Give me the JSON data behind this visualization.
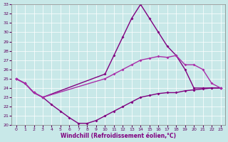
{
  "xlabel": "Windchill (Refroidissement éolien,°C)",
  "background_color": "#c8e8e8",
  "line_color": "#800080",
  "xlim": [
    -0.5,
    23.5
  ],
  "ylim": [
    20,
    33
  ],
  "yticks": [
    20,
    21,
    22,
    23,
    24,
    25,
    26,
    27,
    28,
    29,
    30,
    31,
    32,
    33
  ],
  "xticks": [
    0,
    1,
    2,
    3,
    4,
    5,
    6,
    7,
    8,
    9,
    10,
    11,
    12,
    13,
    14,
    15,
    16,
    17,
    18,
    19,
    20,
    21,
    22,
    23
  ],
  "series": [
    {
      "x": [
        0,
        1,
        2,
        3,
        4,
        5,
        6,
        7,
        8,
        9,
        10,
        11,
        12,
        13,
        14,
        15,
        16,
        17,
        18,
        19,
        20,
        21,
        22,
        23
      ],
      "y": [
        25,
        24.5,
        23.5,
        23.0,
        22.2,
        21.5,
        20.8,
        20.2,
        20.2,
        20.5,
        21.0,
        21.5,
        22.0,
        22.5,
        23.0,
        23.2,
        23.4,
        23.5,
        23.5,
        23.7,
        23.8,
        23.9,
        24.0,
        24.0
      ]
    },
    {
      "x": [
        0,
        1,
        2,
        3,
        10,
        11,
        12,
        13,
        14,
        15,
        16,
        17,
        18,
        19,
        20,
        21,
        22,
        23
      ],
      "y": [
        25,
        24.5,
        23.5,
        23.0,
        25.5,
        27.5,
        29.5,
        31.5,
        33.0,
        31.5,
        30.0,
        28.5,
        27.5,
        26.0,
        24.0,
        24.0,
        24.0,
        24.0
      ]
    },
    {
      "x": [
        0,
        1,
        2,
        3,
        10,
        11,
        12,
        13,
        14,
        15,
        16,
        17,
        18,
        19,
        20,
        21,
        22,
        23
      ],
      "y": [
        25,
        24.5,
        23.5,
        23.0,
        25.0,
        25.5,
        26.0,
        26.5,
        27.0,
        27.2,
        27.4,
        27.3,
        27.5,
        26.5,
        26.5,
        26.0,
        24.5,
        24.0
      ]
    }
  ]
}
